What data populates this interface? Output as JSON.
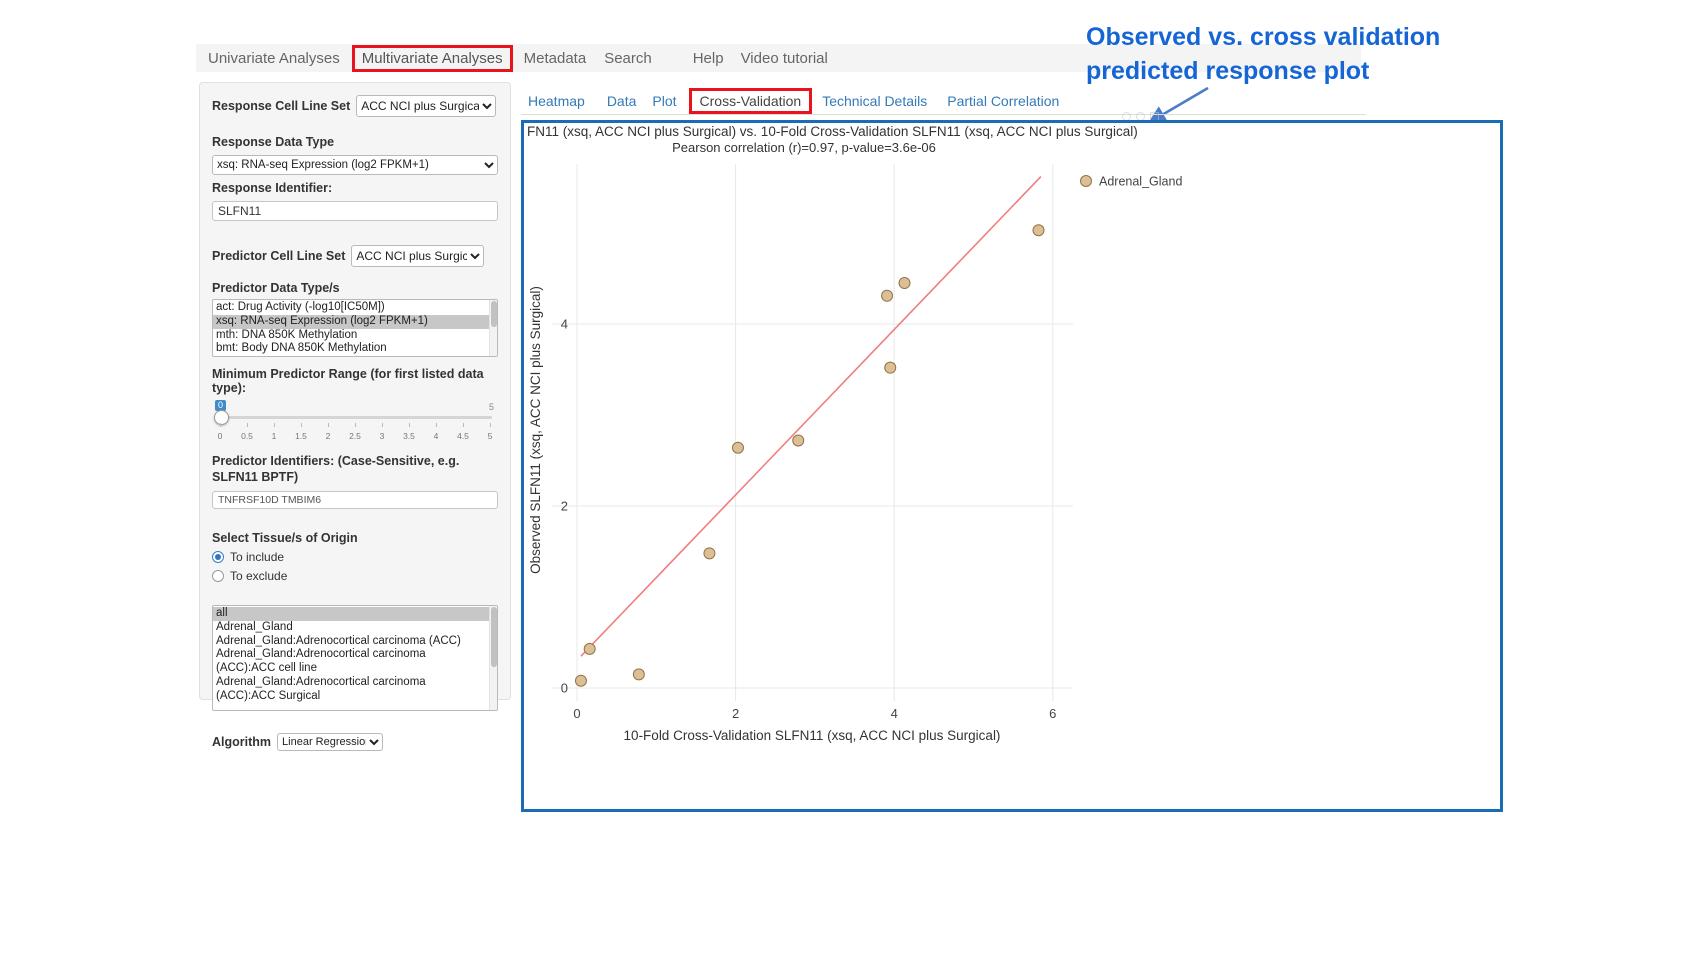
{
  "annotation": {
    "line1": "Observed vs. cross validation",
    "line2": "predicted response plot"
  },
  "top_nav": {
    "items": [
      {
        "label": "Univariate Analyses"
      },
      {
        "label": "Multivariate Analyses",
        "highlighted": true
      },
      {
        "label": "Metadata"
      },
      {
        "label": "Search"
      },
      {
        "label": "Help"
      },
      {
        "label": "Video tutorial"
      }
    ]
  },
  "sidebar": {
    "response_cell_line_set": {
      "label": "Response Cell Line Set",
      "value": "ACC NCI plus Surgical"
    },
    "response_data_type": {
      "label": "Response Data Type",
      "value": "xsq: RNA-seq Expression (log2 FPKM+1)"
    },
    "response_identifier": {
      "label": "Response Identifier:",
      "value": "SLFN11"
    },
    "predictor_cell_line_set": {
      "label": "Predictor Cell Line Set",
      "value": "ACC NCI plus Surgical"
    },
    "predictor_data_types": {
      "label": "Predictor Data Type/s",
      "options": [
        {
          "label": "act: Drug Activity (-log10[IC50M])",
          "selected": false
        },
        {
          "label": "xsq: RNA-seq Expression (log2 FPKM+1)",
          "selected": true
        },
        {
          "label": "mth: DNA 850K Methylation",
          "selected": false
        },
        {
          "label": "bmt: Body DNA 850K Methylation",
          "selected": false
        }
      ]
    },
    "slider": {
      "label": "Minimum Predictor Range (for first listed data type):",
      "value": "0",
      "max_label": "5",
      "ticks": [
        "0",
        "0.5",
        "1",
        "1.5",
        "2",
        "2.5",
        "3",
        "3.5",
        "4",
        "4.5",
        "5"
      ]
    },
    "predictor_identifiers": {
      "label": "Predictor Identifiers: (Case-Sensitive, e.g. SLFN11 BPTF)",
      "value": "TNFRSF10D TMBIM6"
    },
    "tissue_origin": {
      "label": "Select Tissue/s of Origin",
      "options": [
        {
          "label": "To include",
          "selected": true
        },
        {
          "label": "To exclude",
          "selected": false
        }
      ]
    },
    "tissue_list": {
      "options": [
        {
          "label": "all",
          "selected": true
        },
        {
          "label": "Adrenal_Gland",
          "selected": false
        },
        {
          "label": "Adrenal_Gland:Adrenocortical carcinoma (ACC)",
          "selected": false
        },
        {
          "label": "Adrenal_Gland:Adrenocortical carcinoma (ACC):ACC cell line",
          "selected": false
        },
        {
          "label": "Adrenal_Gland:Adrenocortical carcinoma (ACC):ACC Surgical",
          "selected": false
        }
      ]
    },
    "algorithm": {
      "label": "Algorithm",
      "value": "Linear Regression"
    }
  },
  "content_tabs": {
    "items": [
      {
        "label": "Heatmap",
        "active": false
      },
      {
        "label": "Data",
        "active": false
      },
      {
        "label": "Plot",
        "active": false
      },
      {
        "label": "Cross-Validation",
        "active": true
      },
      {
        "label": "Technical Details",
        "active": false
      },
      {
        "label": "Partial Correlation",
        "active": false
      }
    ]
  },
  "chart_data": {
    "type": "scatter",
    "title": "FN11 (xsq, ACC NCI plus Surgical) vs. 10-Fold Cross-Validation SLFN11 (xsq, ACC NCI plus Surgical)",
    "subtitle": "Pearson correlation (r)=0.97, p-value=3.6e-06",
    "xlabel": "10-Fold Cross-Validation SLFN11 (xsq, ACC NCI plus Surgical)",
    "ylabel": "Observed SLFN11 (xsq, ACC NCI plus Surgical)",
    "legend": [
      {
        "name": "Adrenal_Gland",
        "color": "#dcbf94"
      }
    ],
    "xlim": [
      -0.35,
      6.25
    ],
    "ylim": [
      -0.4,
      5.75
    ],
    "xticks": [
      0,
      2,
      4,
      6
    ],
    "yticks": [
      0,
      2,
      4
    ],
    "grid": true,
    "legend_position": "right-top",
    "points": [
      {
        "x": 0.05,
        "y": 0.08
      },
      {
        "x": 0.16,
        "y": 0.43
      },
      {
        "x": 0.78,
        "y": 0.15
      },
      {
        "x": 1.67,
        "y": 1.48
      },
      {
        "x": 2.03,
        "y": 2.64
      },
      {
        "x": 2.79,
        "y": 2.72
      },
      {
        "x": 3.95,
        "y": 3.52
      },
      {
        "x": 3.91,
        "y": 4.31
      },
      {
        "x": 4.13,
        "y": 4.45
      },
      {
        "x": 5.82,
        "y": 5.03
      }
    ],
    "regression_line": {
      "x1": 0.05,
      "y1": 0.35,
      "x2": 5.85,
      "y2": 5.62,
      "color": "#f07e7e"
    },
    "point_fill": "#dcbf94",
    "point_stroke": "#8f7346"
  }
}
